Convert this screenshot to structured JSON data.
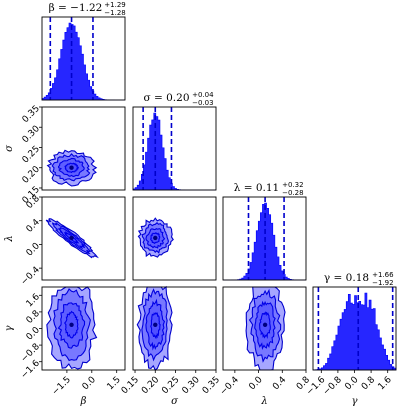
{
  "chart_data": {
    "type": "corner",
    "color": "#0000ff",
    "contour_levels": 4,
    "params": [
      {
        "symbol": "β",
        "title": "β = −1.22",
        "err_plus": "+1.29",
        "err_minus": "−1.28",
        "median": -1.22,
        "lo": -2.5,
        "hi": 0.07,
        "range": [
          -3.0,
          2.0
        ],
        "ticks": [
          -1.5,
          0.0,
          1.5
        ],
        "tick_labels": [
          "−1.5",
          "0.0",
          "1.5"
        ],
        "dist": {
          "shape": "gaussian",
          "sd": 0.62
        }
      },
      {
        "symbol": "σ",
        "title": "σ = 0.20",
        "err_plus": "+0.04",
        "err_minus": "−0.03",
        "median": 0.2,
        "lo": 0.17,
        "hi": 0.24,
        "range": [
          0.145,
          0.35
        ],
        "ticks": [
          0.15,
          0.2,
          0.25,
          0.3,
          0.35
        ],
        "tick_labels": [
          "0.15",
          "0.20",
          "0.25",
          "0.30",
          "0.35"
        ],
        "dist": {
          "shape": "gaussian",
          "sd": 0.018
        }
      },
      {
        "symbol": "λ",
        "title": "λ = 0.11",
        "err_plus": "+0.32",
        "err_minus": "−0.28",
        "median": 0.11,
        "lo": -0.17,
        "hi": 0.43,
        "range": [
          -0.6,
          0.8
        ],
        "ticks": [
          -0.4,
          0.0,
          0.4,
          0.8
        ],
        "tick_labels": [
          "−0.4",
          "0.0",
          "0.4",
          "0.8"
        ],
        "dist": {
          "shape": "gaussian",
          "sd": 0.14
        }
      },
      {
        "symbol": "γ",
        "title": "γ = 0.18",
        "err_plus": "+1.66",
        "err_minus": "−1.92",
        "median": 0.18,
        "lo": -1.74,
        "hi": 1.84,
        "range": [
          -2.0,
          2.0
        ],
        "ticks": [
          -1.6,
          -0.8,
          0.0,
          0.8,
          1.6
        ],
        "tick_labels": [
          "−1.6",
          "−0.8",
          "0.0",
          "0.8",
          "1.6"
        ],
        "dist": {
          "shape": "broad",
          "sd": 0.95
        }
      }
    ],
    "pairs": [
      {
        "x": 0,
        "y": 1,
        "corr": 0.0
      },
      {
        "x": 0,
        "y": 2,
        "corr": -0.92
      },
      {
        "x": 1,
        "y": 2,
        "corr": 0.05
      },
      {
        "x": 0,
        "y": 3,
        "corr": 0.0
      },
      {
        "x": 1,
        "y": 3,
        "corr": 0.0
      },
      {
        "x": 2,
        "y": 3,
        "corr": 0.0
      }
    ]
  }
}
